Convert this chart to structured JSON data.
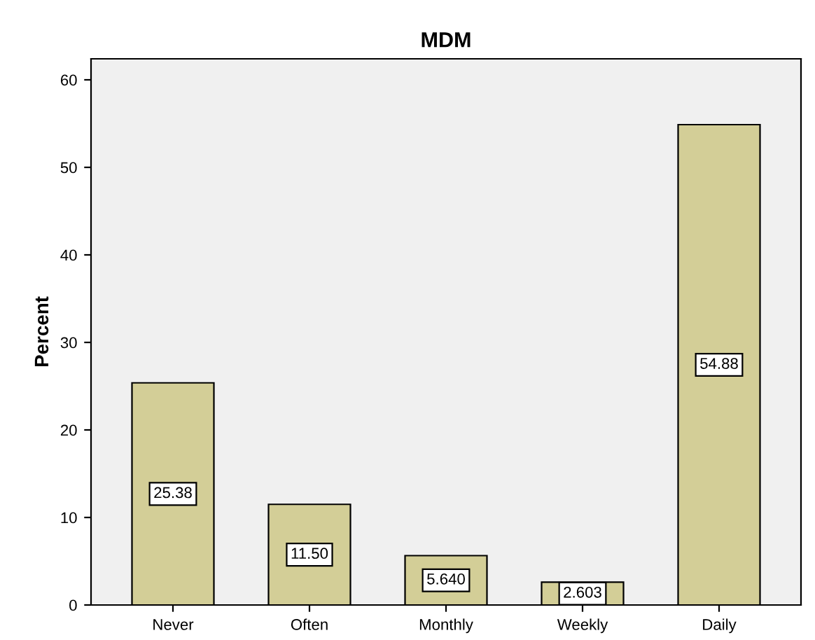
{
  "chart_data": {
    "type": "bar",
    "title": "MDM",
    "ylabel": "Percent",
    "categories": [
      "Never",
      "Often",
      "Monthly",
      "Weekly",
      "Daily"
    ],
    "values": [
      25.38,
      11.5,
      5.64,
      2.603,
      54.88
    ],
    "value_labels": [
      "25.38",
      "11.50",
      "5.640",
      "2.603",
      "54.88"
    ],
    "color": "#d3ce97",
    "ylim": [
      0,
      62.4
    ],
    "yticks": [
      0,
      10,
      20,
      30,
      40,
      50,
      60
    ],
    "grid": false
  }
}
